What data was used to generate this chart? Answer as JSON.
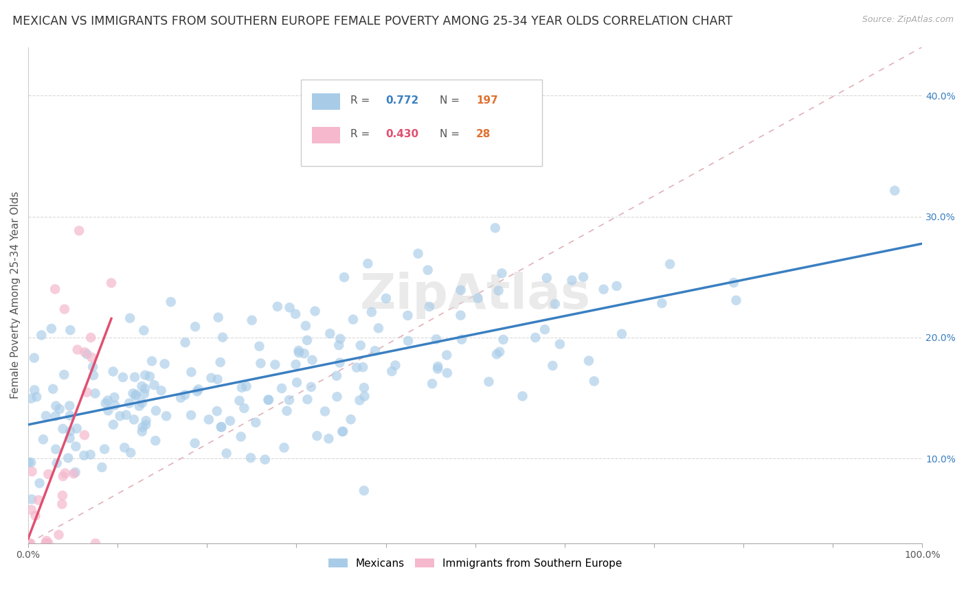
{
  "title": "MEXICAN VS IMMIGRANTS FROM SOUTHERN EUROPE FEMALE POVERTY AMONG 25-34 YEAR OLDS CORRELATION CHART",
  "source": "Source: ZipAtlas.com",
  "ylabel": "Female Poverty Among 25-34 Year Olds",
  "xlim": [
    0,
    1
  ],
  "ylim": [
    0.03,
    0.44
  ],
  "ytick_positions": [
    0.1,
    0.2,
    0.3,
    0.4
  ],
  "ytick_labels": [
    "10.0%",
    "20.0%",
    "30.0%",
    "40.0%"
  ],
  "blue_R": 0.772,
  "blue_N": 197,
  "pink_R": 0.43,
  "pink_N": 28,
  "blue_color": "#a8cce8",
  "pink_color": "#f5b8cc",
  "blue_line_color": "#3a7fc1",
  "pink_line_color": "#e05070",
  "diagonal_color": "#e0b0b8",
  "watermark": "ZipAtlas",
  "legend_blue_label": "Mexicans",
  "legend_pink_label": "Immigrants from Southern Europe",
  "background_color": "#ffffff",
  "grid_color": "#d8d8d8",
  "title_color": "#333333",
  "source_color": "#aaaaaa",
  "ytick_color": "#3a7fc1",
  "xtick_color": "#555555",
  "ylabel_color": "#555555",
  "title_fontsize": 12.5,
  "axis_label_fontsize": 11,
  "tick_fontsize": 10,
  "legend_fontsize": 11,
  "N_color": "#e07030",
  "R_blue_color": "#3a7fc1",
  "R_pink_color": "#e05070"
}
